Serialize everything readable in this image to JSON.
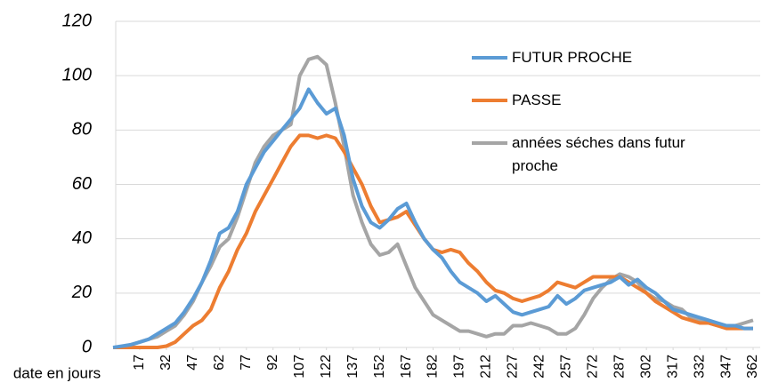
{
  "chart_data": {
    "type": "line",
    "x_label": "date en jours",
    "xlim": [
      1,
      366
    ],
    "ylim": [
      0,
      120
    ],
    "xticks": [
      17,
      32,
      47,
      62,
      77,
      92,
      107,
      122,
      137,
      152,
      167,
      182,
      197,
      212,
      227,
      242,
      257,
      272,
      287,
      302,
      317,
      332,
      347,
      362
    ],
    "yticks": [
      0,
      20,
      40,
      60,
      80,
      100,
      120
    ],
    "grid": true,
    "x": [
      2,
      7,
      12,
      17,
      22,
      27,
      32,
      37,
      42,
      47,
      52,
      57,
      62,
      67,
      72,
      77,
      82,
      87,
      92,
      97,
      102,
      107,
      112,
      117,
      122,
      127,
      132,
      137,
      142,
      147,
      152,
      157,
      162,
      167,
      172,
      177,
      182,
      187,
      192,
      197,
      202,
      207,
      212,
      217,
      222,
      227,
      232,
      237,
      242,
      247,
      252,
      257,
      262,
      267,
      272,
      277,
      282,
      287,
      292,
      297,
      302,
      307,
      312,
      317,
      322,
      327,
      332,
      337,
      342,
      347,
      352,
      357,
      362
    ],
    "series": [
      {
        "name": "FUTUR PROCHE",
        "color": "#5b9bd5",
        "values": [
          0,
          0.5,
          1,
          2,
          3,
          5,
          7,
          9,
          13,
          18,
          24,
          32,
          42,
          44,
          50,
          60,
          66,
          72,
          76,
          80,
          84,
          88,
          95,
          90,
          86,
          88,
          78,
          62,
          52,
          46,
          44,
          47,
          51,
          53,
          46,
          40,
          36,
          33,
          28,
          24,
          22,
          20,
          17,
          19,
          16,
          13,
          12,
          13,
          14,
          15,
          19,
          16,
          18,
          21,
          22,
          23,
          24,
          26,
          23,
          25,
          22,
          20,
          17,
          14,
          13,
          12,
          11,
          10,
          9,
          8,
          8,
          7,
          7
        ]
      },
      {
        "name": "PASSE",
        "color": "#ed7d31",
        "values": [
          0,
          0,
          0,
          0,
          0,
          0,
          0.5,
          2,
          5,
          8,
          10,
          14,
          22,
          28,
          36,
          42,
          50,
          56,
          62,
          68,
          74,
          78,
          78,
          77,
          78,
          77,
          72,
          66,
          60,
          52,
          46,
          47,
          48,
          50,
          45,
          40,
          36,
          35,
          36,
          35,
          31,
          28,
          24,
          21,
          20,
          18,
          17,
          18,
          19,
          21,
          24,
          23,
          22,
          24,
          26,
          26,
          26,
          26,
          24,
          22,
          20,
          17,
          15,
          13,
          11,
          10,
          9,
          9,
          8,
          7,
          7,
          7,
          7
        ]
      },
      {
        "name": "années séches dans futur proche",
        "color": "#a5a5a5",
        "values": [
          0,
          0,
          1,
          2,
          3,
          4,
          6,
          8,
          12,
          17,
          24,
          30,
          37,
          40,
          48,
          58,
          68,
          74,
          78,
          80,
          82,
          100,
          106,
          107,
          104,
          90,
          74,
          56,
          46,
          38,
          34,
          35,
          38,
          30,
          22,
          17,
          12,
          10,
          8,
          6,
          6,
          5,
          4,
          5,
          5,
          8,
          8,
          9,
          8,
          7,
          5,
          5,
          7,
          12,
          18,
          22,
          25,
          27,
          26,
          24,
          20,
          18,
          17,
          15,
          14,
          11,
          10,
          9,
          8,
          8,
          8,
          9,
          10
        ]
      }
    ]
  }
}
